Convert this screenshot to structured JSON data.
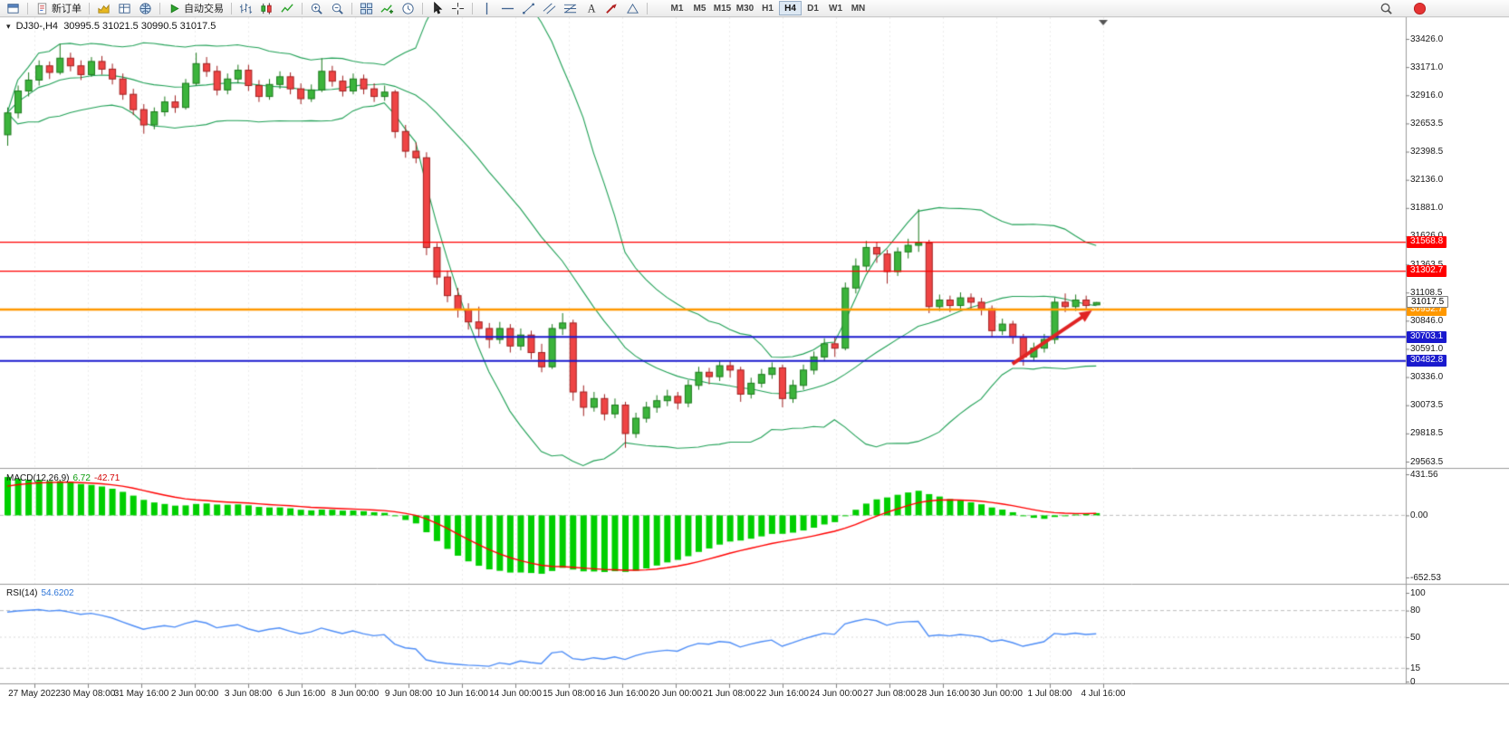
{
  "toolbar": {
    "new_order_label": "新订单",
    "autotrading_label": "自动交易",
    "timeframes": [
      "M1",
      "M5",
      "M15",
      "M30",
      "H1",
      "H4",
      "D1",
      "W1",
      "MN"
    ],
    "active_timeframe": "H4",
    "groups": [
      {
        "icons": [
          "window-icon"
        ]
      },
      {
        "button": "new_order"
      },
      {
        "icons": [
          "market-watch-icon",
          "data-window-icon",
          "navigator-icon"
        ]
      },
      {
        "button": "autotrading"
      },
      {
        "icons": [
          "bar-chart-icon",
          "candlestick-chart-icon",
          "line-chart-icon"
        ]
      },
      {
        "icons": [
          "zoom-in-icon",
          "zoom-out-icon"
        ]
      },
      {
        "icons": [
          "tile-windows-icon",
          "indicators-icon",
          "periods-icon"
        ]
      },
      {
        "icons": [
          "cursor-icon",
          "crosshair-icon"
        ]
      },
      {
        "icons": [
          "vertical-line-icon",
          "horizontal-line-icon",
          "trendline-icon",
          "channel-icon",
          "fibonacci-icon",
          "text-icon",
          "arrow-icon",
          "shapes-icon"
        ]
      },
      {
        "timeframes": true
      },
      {
        "right": [
          "search-icon",
          "notification-icon"
        ]
      }
    ]
  },
  "chart": {
    "symbol_label": "DJ30-,H4",
    "ohlc": "30995.5 31021.5 30990.5 31017.5",
    "current_price": "31017.5",
    "levels": [
      {
        "price": 31568.8,
        "label": "31568.8",
        "color": "#ff0000",
        "width": 1.2
      },
      {
        "price": 31302.7,
        "label": "31302.7",
        "color": "#ff0000",
        "width": 1.2
      },
      {
        "price": 30952.7,
        "label": "30952.7",
        "color": "#ff9800",
        "width": 2.4
      },
      {
        "price": 30703.1,
        "label": "30703.1",
        "color": "#1a1ace",
        "width": 2
      },
      {
        "price": 30482.8,
        "label": "30482.8",
        "color": "#1a1ace",
        "width": 2
      }
    ],
    "y_axis_labels": [
      "33426.0",
      "33171.0",
      "32916.0",
      "32653.5",
      "32398.5",
      "32136.0",
      "31881.0",
      "31626.0",
      "31363.5",
      "31108.5",
      "30846.0",
      "30591.0",
      "30336.0",
      "30073.5",
      "29818.5",
      "29563.5"
    ],
    "x_axis_labels": [
      "27 May 2022",
      "30 May 08:00",
      "31 May 16:00",
      "2 Jun 00:00",
      "3 Jun 08:00",
      "6 Jun 16:00",
      "8 Jun 00:00",
      "9 Jun 08:00",
      "10 Jun 16:00",
      "14 Jun 00:00",
      "15 Jun 08:00",
      "16 Jun 16:00",
      "20 Jun 00:00",
      "21 Jun 08:00",
      "22 Jun 16:00",
      "24 Jun 00:00",
      "27 Jun 08:00",
      "28 Jun 16:00",
      "30 Jun 00:00",
      "1 Jul 08:00",
      "4 Jul 16:00"
    ]
  },
  "macd": {
    "label": "MACD(12,26,9)",
    "value_main": "6.72",
    "value_signal": "-42.71",
    "scale": [
      431.56,
      0,
      -652.53
    ],
    "scale_labels": [
      "431.56",
      "0.00",
      "-652.53"
    ]
  },
  "rsi": {
    "label": "RSI(14)",
    "value": "54.6202",
    "scale": [
      100,
      80,
      50,
      15,
      0
    ],
    "scale_labels": [
      "100",
      "80",
      "50",
      "15",
      "0"
    ],
    "levels": [
      80,
      50,
      15
    ]
  },
  "chart_data": {
    "type": "candlestick",
    "symbol": "DJ30-",
    "period": "H4",
    "price_axis": {
      "max_label": 33426.0,
      "min_label": 29563.5
    },
    "ohlc_current": {
      "open": 30995.5,
      "high": 31021.5,
      "low": 30990.5,
      "close": 31017.5
    },
    "overlays": {
      "bollinger": {
        "period": 20,
        "deviation": 2,
        "color": "#1fa055"
      }
    },
    "indicators": [
      {
        "name": "MACD",
        "params": [
          12,
          26,
          9
        ],
        "scale_max": 431.56,
        "scale_min": -652.53,
        "histogram_color": "#00cf00",
        "signal_color": "#ff0000"
      },
      {
        "name": "RSI",
        "params": [
          14
        ],
        "last_value": 54.6202,
        "line_color": "#4f8ef7",
        "levels": [
          80,
          50,
          15
        ]
      }
    ],
    "trend_arrow": {
      "from": {
        "bar": 96,
        "price": 30455
      },
      "to": {
        "bar": 103.6,
        "price": 30945
      },
      "color": "#e02424",
      "width": 4
    },
    "colors": {
      "up_fill": "#3cb43c",
      "up_stroke": "#1c7a1c",
      "down_fill": "#ef4444",
      "down_stroke": "#a02020",
      "grid": "#ededed"
    },
    "candles": [
      [
        32550,
        32800,
        32450,
        32750
      ],
      [
        32750,
        33000,
        32700,
        32950
      ],
      [
        32950,
        33120,
        32900,
        33050
      ],
      [
        33050,
        33230,
        33000,
        33180
      ],
      [
        33180,
        33220,
        33060,
        33120
      ],
      [
        33120,
        33380,
        33100,
        33250
      ],
      [
        33250,
        33300,
        33130,
        33180
      ],
      [
        33180,
        33230,
        33050,
        33100
      ],
      [
        33100,
        33260,
        33080,
        33220
      ],
      [
        33220,
        33270,
        33100,
        33150
      ],
      [
        33150,
        33200,
        33010,
        33060
      ],
      [
        33060,
        33110,
        32870,
        32920
      ],
      [
        32920,
        32970,
        32730,
        32780
      ],
      [
        32780,
        32830,
        32560,
        32640
      ],
      [
        32640,
        32800,
        32600,
        32760
      ],
      [
        32760,
        32900,
        32720,
        32850
      ],
      [
        32850,
        32910,
        32750,
        32800
      ],
      [
        32800,
        33060,
        32780,
        33020
      ],
      [
        33020,
        33300,
        33000,
        33200
      ],
      [
        33200,
        33260,
        33080,
        33130
      ],
      [
        33130,
        33180,
        32910,
        32960
      ],
      [
        32960,
        33110,
        32920,
        33060
      ],
      [
        33060,
        33190,
        33020,
        33140
      ],
      [
        33140,
        33190,
        32950,
        33000
      ],
      [
        33000,
        33050,
        32850,
        32900
      ],
      [
        32900,
        33060,
        32870,
        33010
      ],
      [
        33010,
        33130,
        32970,
        33080
      ],
      [
        33080,
        33120,
        32920,
        32970
      ],
      [
        32970,
        33020,
        32830,
        32880
      ],
      [
        32880,
        33010,
        32850,
        32960
      ],
      [
        32960,
        33250,
        32940,
        33130
      ],
      [
        33130,
        33180,
        32990,
        33040
      ],
      [
        33040,
        33090,
        32900,
        32950
      ],
      [
        32950,
        33110,
        32920,
        33060
      ],
      [
        33060,
        33100,
        32920,
        32970
      ],
      [
        32970,
        33020,
        32850,
        32900
      ],
      [
        32900,
        33000,
        32860,
        32940
      ],
      [
        32940,
        32960,
        32520,
        32580
      ],
      [
        32580,
        32640,
        32340,
        32400
      ],
      [
        32400,
        32480,
        32290,
        32340
      ],
      [
        32340,
        32390,
        31450,
        31520
      ],
      [
        31520,
        31560,
        31180,
        31250
      ],
      [
        31250,
        31310,
        31020,
        31080
      ],
      [
        31080,
        31150,
        30880,
        30950
      ],
      [
        30950,
        31010,
        30770,
        30840
      ],
      [
        30840,
        30980,
        30700,
        30780
      ],
      [
        30780,
        30830,
        30600,
        30680
      ],
      [
        30680,
        30840,
        30640,
        30780
      ],
      [
        30780,
        30820,
        30560,
        30620
      ],
      [
        30620,
        30780,
        30580,
        30720
      ],
      [
        30720,
        30760,
        30500,
        30560
      ],
      [
        30560,
        30640,
        30380,
        30430
      ],
      [
        30430,
        30820,
        30410,
        30780
      ],
      [
        30780,
        30920,
        30720,
        30830
      ],
      [
        30830,
        30860,
        30120,
        30200
      ],
      [
        30200,
        30260,
        29980,
        30060
      ],
      [
        30060,
        30200,
        30020,
        30140
      ],
      [
        30140,
        30180,
        29940,
        30000
      ],
      [
        30000,
        30140,
        29960,
        30080
      ],
      [
        30080,
        30110,
        29690,
        29820
      ],
      [
        29820,
        30010,
        29780,
        29960
      ],
      [
        29960,
        30110,
        29920,
        30060
      ],
      [
        30060,
        30170,
        30010,
        30120
      ],
      [
        30120,
        30220,
        30070,
        30160
      ],
      [
        30160,
        30200,
        30040,
        30100
      ],
      [
        30100,
        30310,
        30060,
        30260
      ],
      [
        30260,
        30430,
        30220,
        30380
      ],
      [
        30380,
        30420,
        30270,
        30340
      ],
      [
        30340,
        30490,
        30300,
        30440
      ],
      [
        30440,
        30480,
        30330,
        30400
      ],
      [
        30400,
        30430,
        30110,
        30180
      ],
      [
        30180,
        30330,
        30140,
        30280
      ],
      [
        30280,
        30410,
        30240,
        30360
      ],
      [
        30360,
        30470,
        30320,
        30420
      ],
      [
        30420,
        30450,
        30060,
        30140
      ],
      [
        30140,
        30310,
        30100,
        30260
      ],
      [
        30260,
        30450,
        30220,
        30400
      ],
      [
        30400,
        30570,
        30360,
        30520
      ],
      [
        30520,
        30690,
        30480,
        30640
      ],
      [
        30640,
        30700,
        30520,
        30600
      ],
      [
        30600,
        31200,
        30580,
        31150
      ],
      [
        31150,
        31420,
        31100,
        31350
      ],
      [
        31350,
        31580,
        31300,
        31520
      ],
      [
        31520,
        31570,
        31380,
        31460
      ],
      [
        31460,
        31500,
        31190,
        31300
      ],
      [
        31300,
        31520,
        31260,
        31480
      ],
      [
        31480,
        31600,
        31420,
        31540
      ],
      [
        31540,
        31870,
        31480,
        31560
      ],
      [
        31560,
        31590,
        30920,
        30980
      ],
      [
        30980,
        31090,
        30940,
        31040
      ],
      [
        31040,
        31080,
        30930,
        30990
      ],
      [
        30990,
        31110,
        30950,
        31060
      ],
      [
        31060,
        31100,
        30960,
        31020
      ],
      [
        31020,
        31060,
        30900,
        30960
      ],
      [
        30960,
        30990,
        30700,
        30760
      ],
      [
        30760,
        30870,
        30720,
        30820
      ],
      [
        30820,
        30850,
        30640,
        30700
      ],
      [
        30700,
        30730,
        30440,
        30520
      ],
      [
        30520,
        30650,
        30480,
        30600
      ],
      [
        30600,
        30730,
        30560,
        30680
      ],
      [
        30680,
        31060,
        30640,
        31020
      ],
      [
        31020,
        31100,
        30930,
        30980
      ],
      [
        30980,
        31090,
        30940,
        31040
      ],
      [
        31040,
        31080,
        30950,
        30990
      ],
      [
        30995.5,
        31021.5,
        30990.5,
        31017.5
      ]
    ]
  }
}
